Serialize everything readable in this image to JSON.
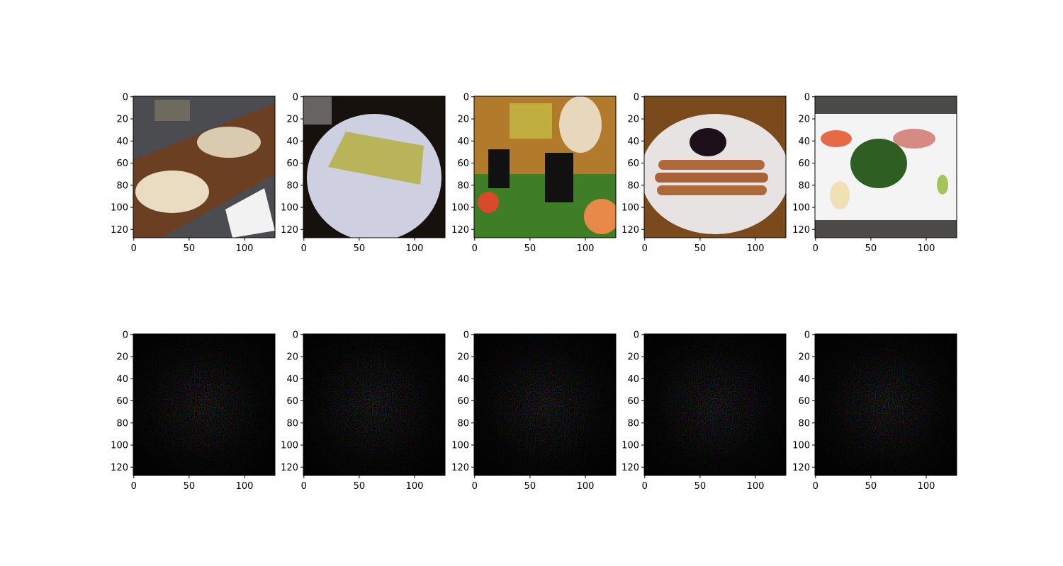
{
  "chart_data": {
    "type": "image-grid",
    "layout": {
      "rows": 2,
      "cols": 5
    },
    "axes": {
      "x_ticks": [
        0,
        50,
        100
      ],
      "y_ticks": [
        0,
        20,
        40,
        60,
        80,
        100,
        120
      ],
      "xlim": [
        -0.5,
        127.5
      ],
      "ylim": [
        127.5,
        -0.5
      ],
      "image_size": [
        128,
        128
      ]
    },
    "panels": [
      {
        "row": 0,
        "kind": "photo",
        "subject": "flatbread-on-board"
      },
      {
        "row": 0,
        "kind": "photo",
        "subject": "garlic-bread-on-plate"
      },
      {
        "row": 0,
        "kind": "photo",
        "subject": "market-vegetables"
      },
      {
        "row": 0,
        "kind": "photo",
        "subject": "churros-with-chocolate"
      },
      {
        "row": 0,
        "kind": "photo",
        "subject": "sashimi-plate"
      },
      {
        "row": 1,
        "kind": "saliency-map",
        "subject": "noise"
      },
      {
        "row": 1,
        "kind": "saliency-map",
        "subject": "noise"
      },
      {
        "row": 1,
        "kind": "saliency-map",
        "subject": "noise"
      },
      {
        "row": 1,
        "kind": "saliency-map",
        "subject": "noise"
      },
      {
        "row": 1,
        "kind": "saliency-map",
        "subject": "noise"
      }
    ]
  }
}
